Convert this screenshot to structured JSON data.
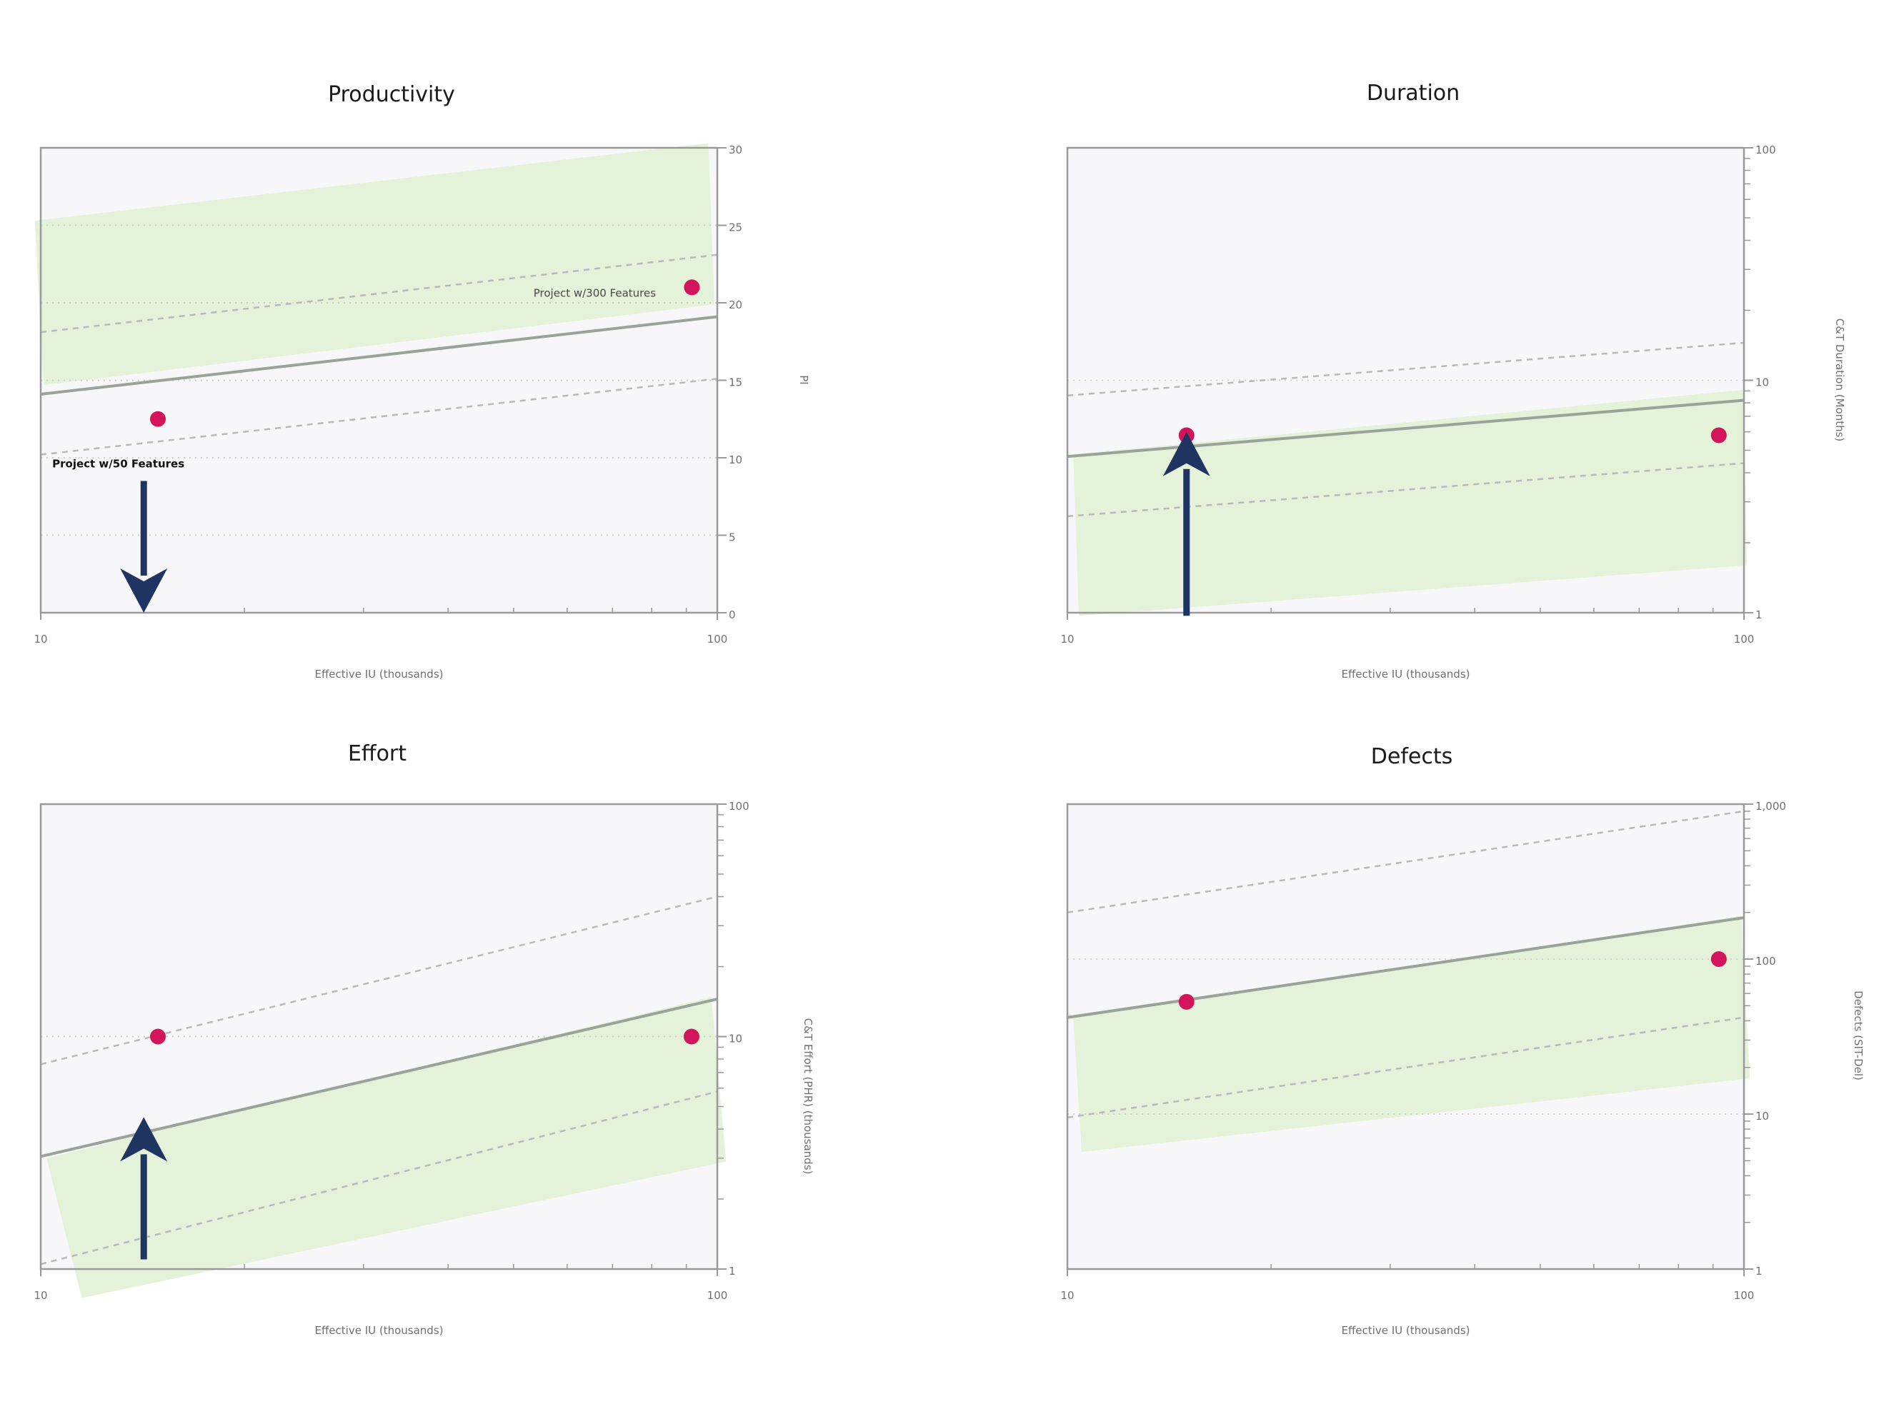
{
  "colors": {
    "plot_bg": "#f7f7f9",
    "band": "#e3f1d7",
    "trend": "#9aa39a",
    "grid": "#cfcfcf",
    "point": "#d4145a",
    "arrow": "#1f3461",
    "axis": "#999999"
  },
  "chart_data": [
    {
      "type": "scatter",
      "title": "Productivity",
      "xlabel": "Effective IU (thousands)",
      "ylabel": "PI",
      "xscale": "log",
      "yscale": "linear",
      "xlim": [
        10,
        100
      ],
      "ylim": [
        0,
        30
      ],
      "x_ticks": [
        {
          "value": 10,
          "label": "10"
        },
        {
          "value": 100,
          "label": "100"
        }
      ],
      "y_ticks": [
        {
          "value": 0,
          "label": "0"
        },
        {
          "value": 5,
          "label": "5"
        },
        {
          "value": 10,
          "label": "10"
        },
        {
          "value": 15,
          "label": "15"
        },
        {
          "value": 20,
          "label": "20"
        },
        {
          "value": 25,
          "label": "25"
        },
        {
          "value": 30,
          "label": "30"
        }
      ],
      "y_minor": [],
      "grid_values": [
        5,
        10,
        15,
        20,
        25
      ],
      "trend": [
        [
          10,
          14.1
        ],
        [
          100,
          19.1
        ]
      ],
      "upper": [
        [
          10,
          18.1
        ],
        [
          100,
          23.1
        ]
      ],
      "lower": [
        [
          10,
          10.2
        ],
        [
          100,
          15.1
        ]
      ],
      "band": [
        [
          9.8,
          25.3
        ],
        [
          97,
          30.3
        ],
        [
          99,
          19.9
        ],
        [
          10.1,
          14.7
        ]
      ],
      "points": [
        {
          "x": 14.9,
          "y": 12.5,
          "label": "Project w/50 Features",
          "label_color": "#111111",
          "label_weight": "bold",
          "label_x": 10.4,
          "label_y": 9.8,
          "label_anchor": "start"
        },
        {
          "x": 91.7,
          "y": 21.0,
          "label": "Project w/300 Features",
          "label_color": "#4a4a4a",
          "label_weight": "normal",
          "label_x": 53.5,
          "label_y": 20.8,
          "label_anchor": "start"
        }
      ],
      "arrow": {
        "x": 14.2,
        "from": 8.5,
        "to": 0,
        "direction": "down"
      }
    },
    {
      "type": "scatter",
      "title": "Duration",
      "xlabel": "Effective IU (thousands)",
      "ylabel": "C&T Duration (Months)",
      "xscale": "log",
      "yscale": "log",
      "xlim": [
        10,
        100
      ],
      "ylim": [
        1,
        100
      ],
      "x_ticks": [
        {
          "value": 10,
          "label": "10"
        },
        {
          "value": 100,
          "label": "100"
        }
      ],
      "y_ticks": [
        {
          "value": 1,
          "label": "1"
        },
        {
          "value": 10,
          "label": "10"
        },
        {
          "value": 100,
          "label": "100"
        }
      ],
      "y_minor": [
        2,
        3,
        4,
        5,
        6,
        7,
        8,
        9,
        20,
        30,
        40,
        50,
        60,
        70,
        80,
        90
      ],
      "grid_values": [
        10
      ],
      "trend": [
        [
          10,
          4.7
        ],
        [
          100,
          8.2
        ]
      ],
      "upper": [
        [
          10,
          8.6
        ],
        [
          100,
          14.5
        ]
      ],
      "lower": [
        [
          10,
          2.6
        ],
        [
          100,
          4.4
        ]
      ],
      "band": [
        [
          10.2,
          4.8
        ],
        [
          100,
          9.1
        ],
        [
          101,
          1.6
        ],
        [
          10.4,
          0.97
        ]
      ],
      "points": [
        {
          "x": 15.0,
          "y": 5.8
        },
        {
          "x": 91.8,
          "y": 5.8
        }
      ],
      "arrow": {
        "x": 15.0,
        "from": 0.97,
        "to": 6.0,
        "direction": "up"
      }
    },
    {
      "type": "scatter",
      "title": "Effort",
      "xlabel": "Effective IU (thousands)",
      "ylabel": "C&T Effort (PHR) (thousands)",
      "xscale": "log",
      "yscale": "log",
      "xlim": [
        10,
        100
      ],
      "ylim": [
        1,
        100
      ],
      "x_ticks": [
        {
          "value": 10,
          "label": "10"
        },
        {
          "value": 100,
          "label": "100"
        }
      ],
      "y_ticks": [
        {
          "value": 1,
          "label": "1"
        },
        {
          "value": 10,
          "label": "10"
        },
        {
          "value": 100,
          "label": "100"
        }
      ],
      "y_minor": [
        2,
        3,
        4,
        5,
        6,
        7,
        8,
        9,
        20,
        30,
        40,
        50,
        60,
        70,
        80,
        90
      ],
      "grid_values": [
        10
      ],
      "trend": [
        [
          10,
          3.05
        ],
        [
          100,
          14.5
        ]
      ],
      "upper": [
        [
          10,
          7.6
        ],
        [
          100,
          40.0
        ]
      ],
      "lower": [
        [
          10,
          1.05
        ],
        [
          100,
          5.8
        ]
      ],
      "band": [
        [
          10.2,
          3.0
        ],
        [
          98,
          14.8
        ],
        [
          103,
          2.9
        ],
        [
          11.5,
          0.75
        ]
      ],
      "points": [
        {
          "x": 14.9,
          "y": 10.0
        },
        {
          "x": 91.6,
          "y": 10.0
        }
      ],
      "arrow": {
        "x": 14.2,
        "from": 1.1,
        "to": 4.5,
        "direction": "up"
      }
    },
    {
      "type": "scatter",
      "title": "Defects",
      "xlabel": "Effective IU (thousands)",
      "ylabel": "Defects (SIT-Del)",
      "xscale": "log",
      "yscale": "log",
      "xlim": [
        10,
        100
      ],
      "ylim": [
        1,
        1000
      ],
      "x_ticks": [
        {
          "value": 10,
          "label": "10"
        },
        {
          "value": 100,
          "label": "100"
        }
      ],
      "y_ticks": [
        {
          "value": 1,
          "label": "1"
        },
        {
          "value": 10,
          "label": "10"
        },
        {
          "value": 100,
          "label": "100"
        },
        {
          "value": 1000,
          "label": "1,000"
        }
      ],
      "y_minor": [
        2,
        3,
        4,
        5,
        6,
        7,
        8,
        9,
        20,
        30,
        40,
        50,
        60,
        70,
        80,
        90,
        200,
        300,
        400,
        500,
        600,
        700,
        800,
        900
      ],
      "grid_values": [
        10,
        100
      ],
      "trend": [
        [
          10,
          42
        ],
        [
          100,
          185
        ]
      ],
      "upper": [
        [
          10,
          200
        ],
        [
          100,
          900
        ]
      ],
      "lower": [
        [
          10,
          9.5
        ],
        [
          100,
          42
        ]
      ],
      "band": [
        [
          10.2,
          42
        ],
        [
          99,
          190
        ],
        [
          102,
          17
        ],
        [
          10.5,
          5.7
        ]
      ],
      "points": [
        {
          "x": 15.0,
          "y": 53
        },
        {
          "x": 91.8,
          "y": 100
        }
      ]
    }
  ]
}
